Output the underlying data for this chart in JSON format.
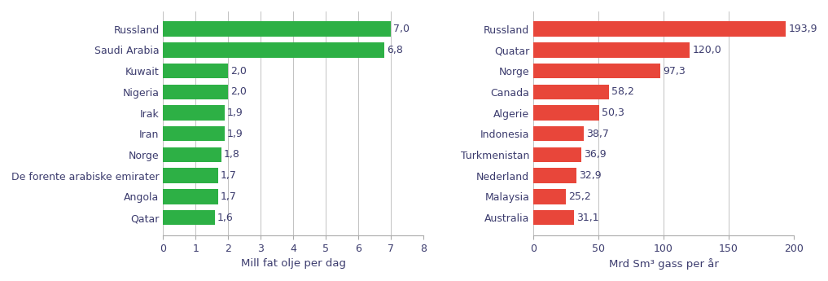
{
  "left": {
    "categories": [
      "Russland",
      "Saudi Arabia",
      "Kuwait",
      "Nigeria",
      "Irak",
      "Iran",
      "Norge",
      "De forente arabiske emirater",
      "Angola",
      "Qatar"
    ],
    "values": [
      7.0,
      6.8,
      2.0,
      2.0,
      1.9,
      1.9,
      1.8,
      1.7,
      1.7,
      1.6
    ],
    "labels": [
      "7,0",
      "6,8",
      "2,0",
      "2,0",
      "1,9",
      "1,9",
      "1,8",
      "1,7",
      "1,7",
      "1,6"
    ],
    "bar_color": "#2db045",
    "xlabel": "Mill fat olje per dag",
    "xlim": [
      0,
      8
    ],
    "xticks": [
      0,
      1,
      2,
      3,
      4,
      5,
      6,
      7,
      8
    ]
  },
  "right": {
    "categories": [
      "Russland",
      "Quatar",
      "Norge",
      "Canada",
      "Algerie",
      "Indonesia",
      "Turkmenistan",
      "Nederland",
      "Malaysia",
      "Australia"
    ],
    "values": [
      193.9,
      120.0,
      97.3,
      58.2,
      50.3,
      38.7,
      36.9,
      32.9,
      25.2,
      31.1
    ],
    "labels": [
      "193,9",
      "120,0",
      "97,3",
      "58,2",
      "50,3",
      "38,7",
      "36,9",
      "32,9",
      "25,2",
      "31,1"
    ],
    "bar_color": "#e8463a",
    "xlabel": "Mrd Sm³ gass per år",
    "xlim": [
      0,
      200
    ],
    "xticks": [
      0,
      50,
      100,
      150,
      200
    ]
  },
  "bar_height": 0.72,
  "text_color": "#3c3c6e",
  "axis_color": "#aaaaaa",
  "label_fontsize": 9,
  "tick_fontsize": 9,
  "xlabel_fontsize": 9.5
}
